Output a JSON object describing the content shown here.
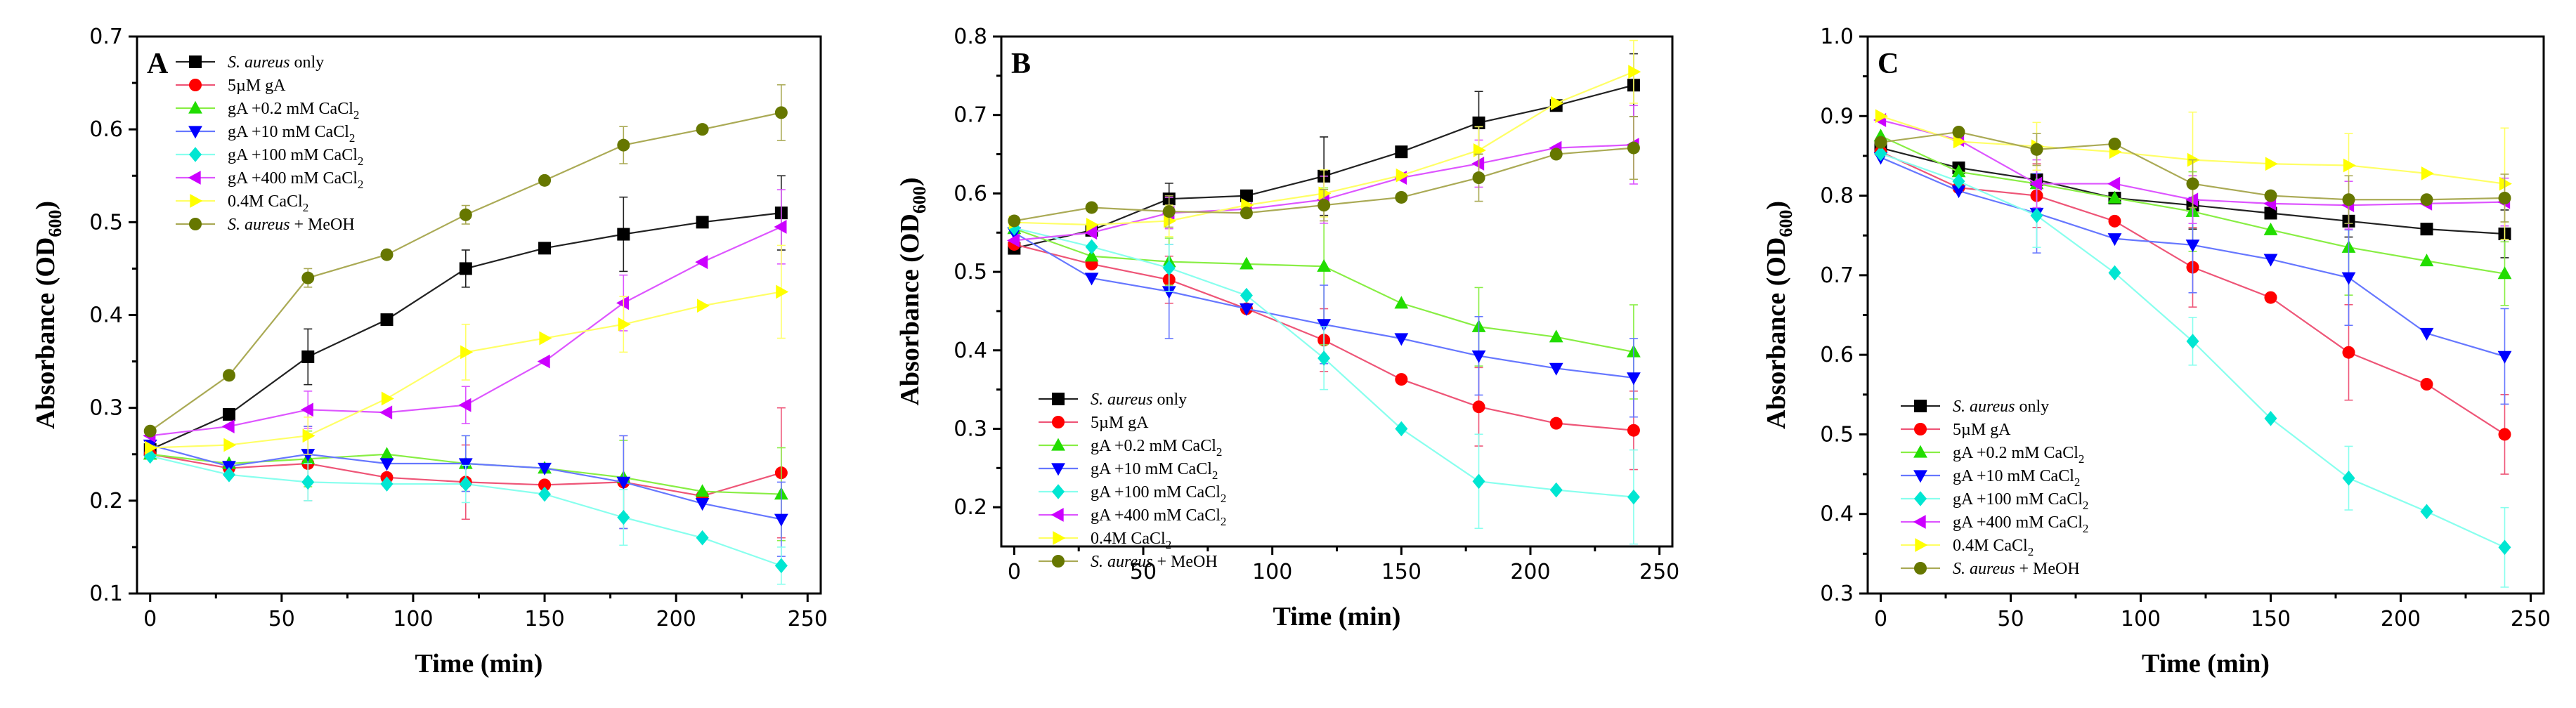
{
  "series_colors": [
    "#000000",
    "#ff0000",
    "#22dd00",
    "#0000ff",
    "#00e6d2",
    "#cc00ff",
    "#ffff00",
    "#667700"
  ],
  "line_colors": [
    "#222222",
    "#ee5577",
    "#88ee44",
    "#6677ff",
    "#88ffee",
    "#dd55ff",
    "#ffff66",
    "#aaaa55"
  ],
  "marker_shapes": [
    "square",
    "circle",
    "triangle-up",
    "triangle-down",
    "diamond",
    "triangle-left",
    "triangle-right",
    "circle"
  ],
  "chart_data": [
    {
      "type": "line",
      "panel": "A",
      "xlabel": "Time (min)",
      "ylabel_main": "Absorbance (OD",
      "ylabel_sub": "600",
      "ylabel_close": ")",
      "xlim": [
        -5,
        255
      ],
      "ylim": [
        0.1,
        0.7
      ],
      "xticks": [
        0,
        50,
        100,
        150,
        200,
        250
      ],
      "yticks": [
        0.1,
        0.2,
        0.3,
        0.4,
        0.5,
        0.6,
        0.7
      ],
      "ytick_labels": [
        "0.1",
        "0.2",
        "0.3",
        "0.4",
        "0.5",
        "0.6",
        "0.7"
      ],
      "legend_position": "top-left",
      "x": [
        0,
        30,
        60,
        90,
        120,
        150,
        180,
        210,
        240
      ],
      "series": [
        {
          "name": [
            "S. aureus",
            " only"
          ],
          "values": [
            0.255,
            0.293,
            0.355,
            0.395,
            0.45,
            0.472,
            0.487,
            0.5,
            0.51
          ],
          "errors": [
            0,
            0,
            0.03,
            0,
            0.02,
            0,
            0.04,
            0,
            0.04
          ]
        },
        {
          "name": [
            "",
            "5µM gA"
          ],
          "values": [
            0.25,
            0.235,
            0.24,
            0.225,
            0.22,
            0.217,
            0.22,
            0.205,
            0.23
          ],
          "errors": [
            0,
            0,
            0.04,
            0,
            0.04,
            0,
            0.05,
            0,
            0.07
          ]
        },
        {
          "name": [
            "",
            "gA +0.2 mM CaCl",
            "2"
          ],
          "values": [
            0.25,
            0.24,
            0.245,
            0.25,
            0.24,
            0.235,
            0.225,
            0.21,
            0.207
          ],
          "errors": [
            0,
            0,
            0.03,
            0,
            0.03,
            0,
            0.04,
            0,
            0.05
          ]
        },
        {
          "name": [
            "",
            "gA +10 mM CaCl",
            "2"
          ],
          "values": [
            0.26,
            0.237,
            0.25,
            0.24,
            0.24,
            0.235,
            0.22,
            0.197,
            0.18
          ],
          "errors": [
            0,
            0,
            0.03,
            0,
            0.03,
            0,
            0.05,
            0,
            0.04
          ]
        },
        {
          "name": [
            "",
            "gA +100 mM CaCl",
            "2"
          ],
          "values": [
            0.248,
            0.228,
            0.22,
            0.218,
            0.218,
            0.207,
            0.182,
            0.16,
            0.13
          ],
          "errors": [
            0,
            0,
            0.02,
            0,
            0.02,
            0,
            0.03,
            0,
            0.02
          ]
        },
        {
          "name": [
            "",
            "gA +400 mM CaCl",
            "2"
          ],
          "values": [
            0.27,
            0.28,
            0.298,
            0.295,
            0.303,
            0.35,
            0.413,
            0.457,
            0.495
          ],
          "errors": [
            0,
            0,
            0.02,
            0,
            0.02,
            0,
            0.03,
            0,
            0.04
          ]
        },
        {
          "name": [
            "",
            "0.4M CaCl",
            "2"
          ],
          "values": [
            0.257,
            0.26,
            0.27,
            0.31,
            0.36,
            0.375,
            0.39,
            0.41,
            0.425
          ],
          "errors": [
            0,
            0,
            0.02,
            0,
            0.03,
            0,
            0.03,
            0,
            0.05
          ]
        },
        {
          "name": [
            "S. aureus",
            " + MeOH"
          ],
          "values": [
            0.275,
            0.335,
            0.44,
            0.465,
            0.508,
            0.545,
            0.583,
            0.6,
            0.618
          ],
          "errors": [
            0,
            0,
            0.01,
            0,
            0.01,
            0,
            0.02,
            0,
            0.03
          ]
        }
      ]
    },
    {
      "type": "line",
      "panel": "B",
      "xlabel": "Time (min)",
      "ylabel_main": "Absorbance (OD",
      "ylabel_sub": "600",
      "ylabel_close": ")",
      "xlim": [
        -5,
        255
      ],
      "ylim": [
        0.15,
        0.8
      ],
      "xticks": [
        0,
        50,
        100,
        150,
        200,
        250
      ],
      "yticks": [
        0.2,
        0.3,
        0.4,
        0.5,
        0.6,
        0.7,
        0.8
      ],
      "ytick_labels": [
        "0.2",
        "0.3",
        "0.4",
        "0.5",
        "0.6",
        "0.7",
        "0.8"
      ],
      "legend_position": "bottom-left",
      "x": [
        0,
        30,
        60,
        90,
        120,
        150,
        180,
        210,
        240
      ],
      "series": [
        {
          "name": [
            "S. aureus",
            " only"
          ],
          "values": [
            0.53,
            0.553,
            0.593,
            0.597,
            0.622,
            0.653,
            0.69,
            0.712,
            0.738
          ],
          "errors": [
            0,
            0,
            0.02,
            0,
            0.05,
            0,
            0.04,
            0,
            0.04
          ]
        },
        {
          "name": [
            "",
            "5µM gA"
          ],
          "values": [
            0.535,
            0.51,
            0.49,
            0.453,
            0.413,
            0.363,
            0.328,
            0.307,
            0.298
          ],
          "errors": [
            0,
            0,
            0.03,
            0,
            0.04,
            0,
            0.05,
            0,
            0.05
          ]
        },
        {
          "name": [
            "",
            "gA +0.2 mM CaCl",
            "2"
          ],
          "values": [
            0.555,
            0.52,
            0.513,
            0.51,
            0.507,
            0.46,
            0.43,
            0.417,
            0.398
          ],
          "errors": [
            0,
            0,
            0.03,
            0,
            0.1,
            0,
            0.05,
            0,
            0.06
          ]
        },
        {
          "name": [
            "",
            "gA +10 mM CaCl",
            "2"
          ],
          "values": [
            0.55,
            0.492,
            0.475,
            0.453,
            0.433,
            0.415,
            0.393,
            0.377,
            0.365
          ],
          "errors": [
            0,
            0,
            0.06,
            0,
            0.05,
            0,
            0.05,
            0,
            0.05
          ]
        },
        {
          "name": [
            "",
            "gA +100 mM CaCl",
            "2"
          ],
          "values": [
            0.556,
            0.532,
            0.505,
            0.47,
            0.39,
            0.3,
            0.233,
            0.222,
            0.213
          ],
          "errors": [
            0,
            0,
            0.03,
            0,
            0.04,
            0,
            0.06,
            0,
            0.06
          ]
        },
        {
          "name": [
            "",
            "gA +400 mM CaCl",
            "2"
          ],
          "values": [
            0.54,
            0.55,
            0.575,
            0.58,
            0.592,
            0.62,
            0.638,
            0.658,
            0.662
          ],
          "errors": [
            0,
            0,
            0.02,
            0,
            0.03,
            0,
            0.03,
            0,
            0.05
          ]
        },
        {
          "name": [
            "",
            "0.4M CaCl",
            "2"
          ],
          "values": [
            0.563,
            0.56,
            0.565,
            0.585,
            0.6,
            0.623,
            0.655,
            0.715,
            0.755
          ],
          "errors": [
            0,
            0,
            0.02,
            0,
            0.03,
            0,
            0.03,
            0,
            0.04
          ]
        },
        {
          "name": [
            "S. aureus",
            " + MeOH"
          ],
          "values": [
            0.565,
            0.582,
            0.577,
            0.575,
            0.585,
            0.595,
            0.62,
            0.65,
            0.658
          ],
          "errors": [
            0,
            0,
            0.02,
            0,
            0.02,
            0,
            0.03,
            0,
            0.04
          ]
        }
      ]
    },
    {
      "type": "line",
      "panel": "C",
      "xlabel": "Time (min)",
      "ylabel_main": "Absorbance (OD",
      "ylabel_sub": "600",
      "ylabel_close": ")",
      "xlim": [
        -5,
        255
      ],
      "ylim": [
        0.3,
        1.0
      ],
      "xticks": [
        0,
        50,
        100,
        150,
        200,
        250
      ],
      "yticks": [
        0.3,
        0.4,
        0.5,
        0.6,
        0.7,
        0.8,
        0.9,
        1.0
      ],
      "ytick_labels": [
        "0.3",
        "0.4",
        "0.5",
        "0.6",
        "0.7",
        "0.8",
        "0.9",
        "1.0"
      ],
      "legend_position": "bottom-left",
      "x": [
        0,
        30,
        60,
        90,
        120,
        150,
        180,
        210,
        240
      ],
      "series": [
        {
          "name": [
            "S. aureus",
            " only"
          ],
          "values": [
            0.86,
            0.835,
            0.82,
            0.797,
            0.788,
            0.778,
            0.768,
            0.758,
            0.752
          ],
          "errors": [
            0,
            0,
            0.02,
            0,
            0.03,
            0,
            0.02,
            0,
            0.03
          ]
        },
        {
          "name": [
            "",
            "5µM gA"
          ],
          "values": [
            0.855,
            0.81,
            0.8,
            0.768,
            0.71,
            0.672,
            0.603,
            0.563,
            0.5
          ],
          "errors": [
            0,
            0,
            0.04,
            0,
            0.05,
            0,
            0.06,
            0,
            0.05
          ]
        },
        {
          "name": [
            "",
            "gA +0.2 mM CaCl",
            "2"
          ],
          "values": [
            0.875,
            0.83,
            0.815,
            0.797,
            0.78,
            0.757,
            0.735,
            0.718,
            0.702
          ],
          "errors": [
            0,
            0,
            0.04,
            0,
            0.05,
            0,
            0.06,
            0,
            0.04
          ]
        },
        {
          "name": [
            "",
            "gA +10 mM CaCl",
            "2"
          ],
          "values": [
            0.848,
            0.806,
            0.778,
            0.746,
            0.738,
            0.72,
            0.697,
            0.627,
            0.598
          ],
          "errors": [
            0,
            0,
            0.05,
            0,
            0.06,
            0,
            0.06,
            0,
            0.06
          ]
        },
        {
          "name": [
            "",
            "gA +100 mM CaCl",
            "2"
          ],
          "values": [
            0.853,
            0.818,
            0.775,
            0.703,
            0.617,
            0.52,
            0.445,
            0.403,
            0.358
          ],
          "errors": [
            0,
            0,
            0.04,
            0,
            0.03,
            0,
            0.04,
            0,
            0.05
          ]
        },
        {
          "name": [
            "",
            "gA +400 mM CaCl",
            "2"
          ],
          "values": [
            0.895,
            0.87,
            0.815,
            0.815,
            0.795,
            0.79,
            0.788,
            0.79,
            0.792
          ],
          "errors": [
            0,
            0,
            0.03,
            0,
            0.03,
            0,
            0.03,
            0,
            0.03
          ]
        },
        {
          "name": [
            "",
            "0.4M CaCl",
            "2"
          ],
          "values": [
            0.9,
            0.868,
            0.862,
            0.855,
            0.845,
            0.84,
            0.838,
            0.828,
            0.815
          ],
          "errors": [
            0,
            0,
            0.03,
            0,
            0.06,
            0,
            0.04,
            0,
            0.07
          ]
        },
        {
          "name": [
            "S. aureus",
            " + MeOH"
          ],
          "values": [
            0.867,
            0.88,
            0.858,
            0.865,
            0.815,
            0.8,
            0.795,
            0.795,
            0.797
          ],
          "errors": [
            0,
            0,
            0.02,
            0,
            0.03,
            0,
            0.03,
            0,
            0.03
          ]
        }
      ]
    }
  ]
}
